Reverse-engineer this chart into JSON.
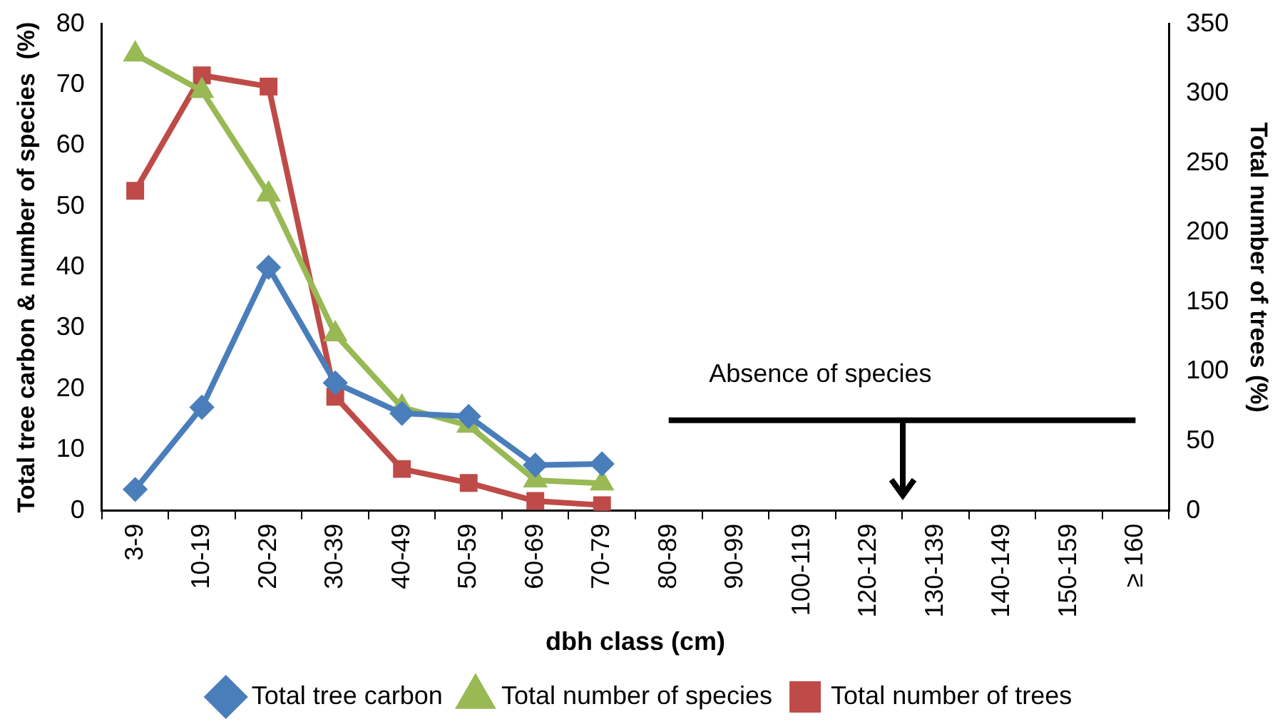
{
  "chart_data": {
    "type": "line",
    "xlabel": "dbh class (cm)",
    "ylabel": "Total tree carbon & number of species  (%)",
    "y2label": "Total number of trees (%)",
    "categories": [
      "3-9",
      "10-19",
      "20-29",
      "30-39",
      "40-49",
      "50-59",
      "60-69",
      "70-79",
      "80-89",
      "90-99",
      "100-119",
      "120-129",
      "130-139",
      "140-149",
      "150-159",
      "≥ 160"
    ],
    "series": [
      {
        "name": "Total tree carbon",
        "color": "#4a7ebb",
        "marker": "diamond",
        "values": [
          3.5,
          17,
          40,
          21,
          16,
          15.5,
          7.5,
          7.7,
          null,
          null,
          null,
          null,
          null,
          null,
          null,
          null
        ]
      },
      {
        "name": "Total number of species",
        "color": "#98b954",
        "marker": "triangle",
        "values": [
          75,
          69,
          52,
          29,
          17,
          14,
          5,
          4.5,
          null,
          null,
          null,
          null,
          null,
          null,
          null,
          null
        ]
      },
      {
        "name": "Total number of trees",
        "color": "#be4b48",
        "marker": "square",
        "axis": "y2",
        "values": [
          230,
          313,
          305,
          82,
          30,
          20,
          7,
          4,
          null,
          null,
          null,
          null,
          null,
          null,
          null,
          null
        ]
      },
      {
        "type": "line",
        "color": "#000000",
        "marker": "none",
        "axis": "y2",
        "values": [
          null,
          null,
          null,
          null,
          null,
          null,
          null,
          null,
          65,
          65,
          65,
          65,
          65,
          65,
          65,
          65
        ]
      }
    ],
    "ylim": [
      0,
      80
    ],
    "yticks": [
      0,
      10,
      20,
      30,
      40,
      50,
      60,
      70,
      80
    ],
    "y2lim": [
      0,
      350
    ],
    "y2ticks": [
      0,
      50,
      100,
      150,
      200,
      250,
      300,
      350
    ],
    "grid": false,
    "legend": "bottom",
    "line_style": "solid",
    "annotations": [
      "Absence of species"
    ]
  }
}
